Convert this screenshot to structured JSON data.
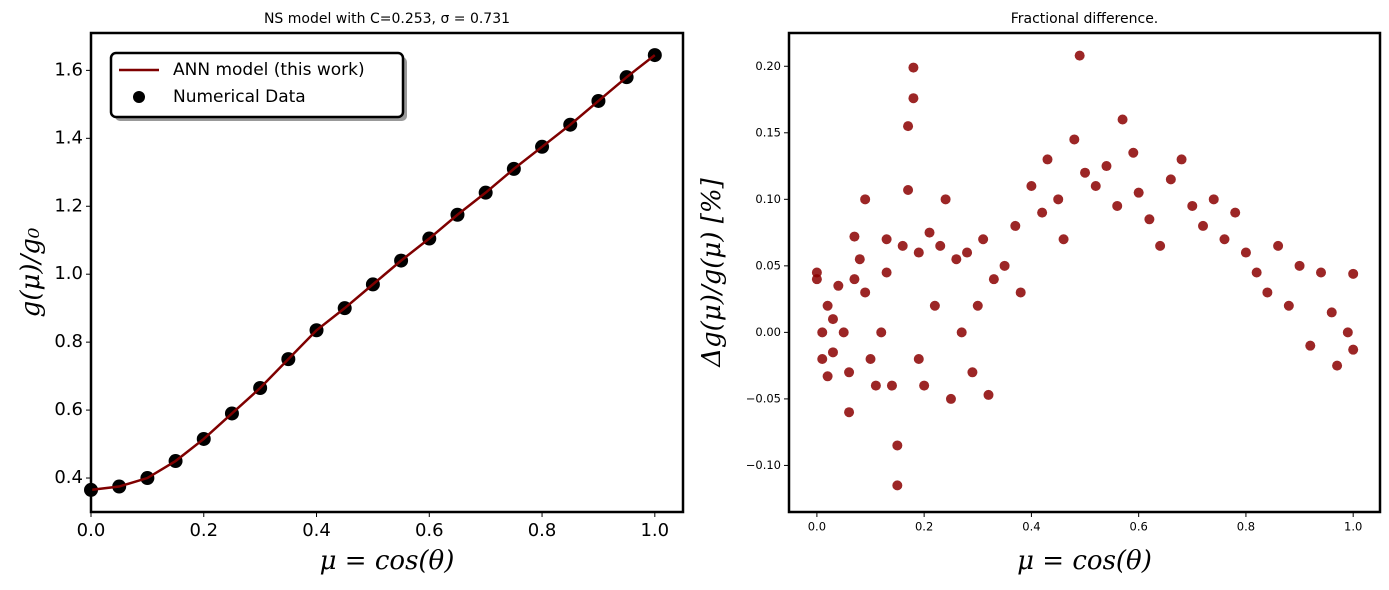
{
  "chart_data": [
    {
      "type": "line",
      "title": "NS model with C=0.253, σ = 0.731",
      "x_label": "μ = cos(θ)",
      "y_label": "g(μ)/g₀",
      "x": [
        0,
        0.05,
        0.1,
        0.15,
        0.2,
        0.25,
        0.3,
        0.35,
        0.4,
        0.45,
        0.5,
        0.55,
        0.6,
        0.65,
        0.7,
        0.75,
        0.8,
        0.85,
        0.9,
        0.95,
        1.0
      ],
      "series": [
        {
          "name": "ANN model (this work)",
          "color": "#7f0000",
          "kind": "line",
          "values": [
            0.365,
            0.375,
            0.4,
            0.45,
            0.515,
            0.59,
            0.665,
            0.75,
            0.835,
            0.9,
            0.97,
            1.04,
            1.105,
            1.175,
            1.24,
            1.31,
            1.375,
            1.44,
            1.51,
            1.58,
            1.645
          ]
        },
        {
          "name": "Numerical Data",
          "color": "#000000",
          "kind": "scatter",
          "values": [
            0.365,
            0.375,
            0.4,
            0.45,
            0.515,
            0.59,
            0.665,
            0.75,
            0.835,
            0.9,
            0.97,
            1.04,
            1.105,
            1.175,
            1.24,
            1.31,
            1.375,
            1.44,
            1.51,
            1.58,
            1.645
          ]
        }
      ],
      "xlim": [
        0,
        1.05
      ],
      "xticks": [
        {
          "value": 0,
          "label": "0.0"
        },
        0.2,
        0.4,
        0.6,
        0.8,
        {
          "value": 1,
          "label": "1.0"
        }
      ],
      "ylim": [
        0.3,
        1.71
      ],
      "yticks": [
        0.4,
        0.6,
        0.8,
        {
          "value": 1,
          "label": "1.0"
        },
        1.2,
        1.4,
        1.6
      ],
      "legend": "upper left"
    },
    {
      "type": "scatter",
      "title": "Fractional difference.",
      "x_label": "μ = cos(θ)",
      "y_label": "Δg(μ)/g(μ)  [%]",
      "color": "#8b0000",
      "x": [
        0.0,
        0.0,
        0.01,
        0.01,
        0.02,
        0.02,
        0.03,
        0.03,
        0.04,
        0.05,
        0.06,
        0.06,
        0.07,
        0.07,
        0.08,
        0.09,
        0.09,
        0.1,
        0.11,
        0.12,
        0.13,
        0.13,
        0.14,
        0.15,
        0.15,
        0.16,
        0.17,
        0.17,
        0.18,
        0.18,
        0.19,
        0.19,
        0.2,
        0.21,
        0.22,
        0.23,
        0.24,
        0.25,
        0.26,
        0.27,
        0.28,
        0.29,
        0.3,
        0.31,
        0.32,
        0.33,
        0.35,
        0.37,
        0.38,
        0.4,
        0.42,
        0.43,
        0.45,
        0.46,
        0.48,
        0.49,
        0.5,
        0.52,
        0.54,
        0.56,
        0.57,
        0.59,
        0.6,
        0.62,
        0.64,
        0.66,
        0.68,
        0.7,
        0.72,
        0.74,
        0.76,
        0.78,
        0.8,
        0.82,
        0.84,
        0.86,
        0.88,
        0.9,
        0.92,
        0.94,
        0.96,
        0.97,
        0.99,
        1.0,
        1.0
      ],
      "values": [
        0.045,
        0.04,
        0.0,
        -0.02,
        0.02,
        -0.033,
        0.01,
        -0.015,
        0.035,
        0.0,
        -0.06,
        -0.03,
        0.04,
        0.072,
        0.055,
        0.1,
        0.03,
        -0.02,
        -0.04,
        0.0,
        0.045,
        0.07,
        -0.04,
        -0.085,
        -0.115,
        0.065,
        0.107,
        0.155,
        0.199,
        0.176,
        -0.02,
        0.06,
        -0.04,
        0.075,
        0.02,
        0.065,
        0.1,
        -0.05,
        0.055,
        0.0,
        0.06,
        -0.03,
        0.02,
        0.07,
        -0.047,
        0.04,
        0.05,
        0.08,
        0.03,
        0.11,
        0.09,
        0.13,
        0.1,
        0.07,
        0.145,
        0.208,
        0.12,
        0.11,
        0.125,
        0.095,
        0.16,
        0.135,
        0.105,
        0.085,
        0.065,
        0.115,
        0.13,
        0.095,
        0.08,
        0.1,
        0.07,
        0.09,
        0.06,
        0.045,
        0.03,
        0.065,
        0.02,
        0.05,
        -0.01,
        0.045,
        0.015,
        -0.025,
        0.0,
        0.044,
        -0.013
      ],
      "xlim": [
        -0.052,
        1.05
      ],
      "xticks": [
        {
          "value": 0,
          "label": "0.0"
        },
        0.2,
        0.4,
        0.6,
        0.8,
        {
          "value": 1,
          "label": "1.0"
        }
      ],
      "ylim": [
        -0.135,
        0.225
      ],
      "yticks": [
        {
          "value": -0.1,
          "label": "−0.10"
        },
        {
          "value": -0.05,
          "label": "−0.05"
        },
        {
          "value": 0,
          "label": "0.00"
        },
        0.05,
        {
          "value": 0.1,
          "label": "0.10"
        },
        0.15,
        {
          "value": 0.2,
          "label": "0.20"
        }
      ]
    }
  ]
}
